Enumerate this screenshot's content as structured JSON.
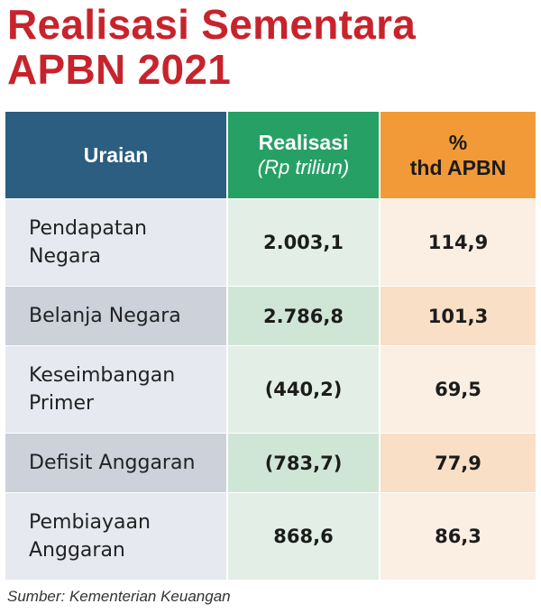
{
  "title_line1": "Realisasi Sementara",
  "title_line2": "APBN 2021",
  "columns": {
    "uraian": "Uraian",
    "realisasi": "Realisasi",
    "realisasi_unit": "(Rp triliun)",
    "pct_line1": "%",
    "pct_line2": "thd APBN"
  },
  "rows": [
    {
      "label_line1": "Pendapatan",
      "label_line2": "Negara",
      "realisasi": "2.003,1",
      "pct": "114,9"
    },
    {
      "label_line1": "Belanja Negara",
      "label_line2": "",
      "realisasi": "2.786,8",
      "pct": "101,3"
    },
    {
      "label_line1": "Keseimbangan",
      "label_line2": "Primer",
      "realisasi": "(440,2)",
      "pct": "69,5"
    },
    {
      "label_line1": "Defisit Anggaran",
      "label_line2": "",
      "realisasi": "(783,7)",
      "pct": "77,9"
    },
    {
      "label_line1": "Pembiayaan",
      "label_line2": "Anggaran",
      "realisasi": "868,6",
      "pct": "86,3"
    }
  ],
  "source": "Sumber: Kementerian Keuangan",
  "colors": {
    "title": "#c8232c",
    "header_uraian": "#2b5e80",
    "header_realisasi": "#27a065",
    "header_pct": "#f29a38"
  }
}
